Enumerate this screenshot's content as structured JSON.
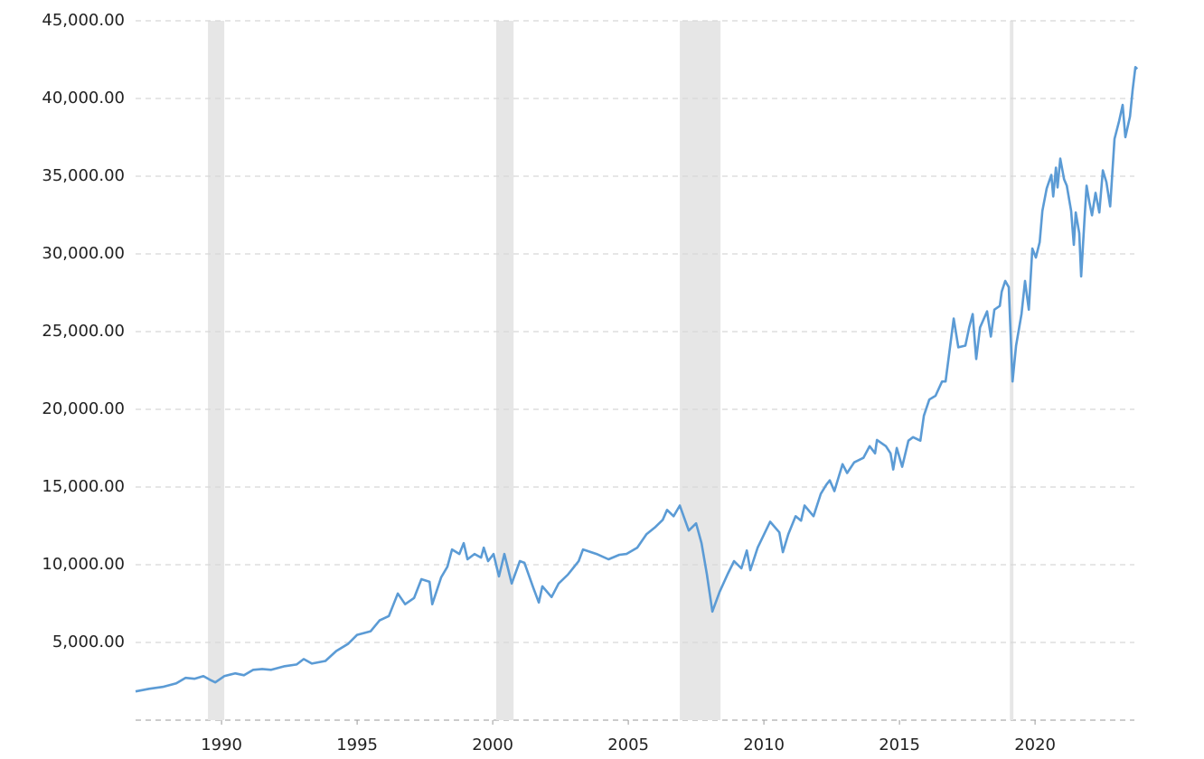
{
  "chart_data": {
    "type": "line",
    "x": [
      1986.83,
      1987.33,
      1987.83,
      1988.33,
      1988.67,
      1989.0,
      1989.33,
      1989.57,
      1989.77,
      1990.1,
      1990.5,
      1990.83,
      1991.17,
      1991.5,
      1991.83,
      1992.33,
      1992.77,
      1993.03,
      1993.33,
      1993.83,
      1994.23,
      1994.67,
      1995.0,
      1995.5,
      1995.83,
      1996.17,
      1996.5,
      1996.77,
      1997.1,
      1997.37,
      1997.67,
      1997.77,
      1998.1,
      1998.33,
      1998.5,
      1998.77,
      1998.93,
      1999.07,
      1999.33,
      1999.57,
      1999.67,
      1999.83,
      2000.03,
      2000.23,
      2000.43,
      2000.7,
      2001.0,
      2001.17,
      2001.5,
      2001.7,
      2001.83,
      2002.17,
      2002.43,
      2002.77,
      2003.17,
      2003.33,
      2003.83,
      2004.27,
      2004.67,
      2004.93,
      2005.33,
      2005.67,
      2006.0,
      2006.27,
      2006.43,
      2006.67,
      2006.9,
      2007.23,
      2007.5,
      2007.7,
      2007.9,
      2008.1,
      2008.37,
      2008.67,
      2008.9,
      2009.17,
      2009.37,
      2009.5,
      2009.77,
      2010.23,
      2010.57,
      2010.7,
      2010.9,
      2011.17,
      2011.37,
      2011.5,
      2011.83,
      2012.1,
      2012.3,
      2012.43,
      2012.6,
      2012.9,
      2013.07,
      2013.33,
      2013.67,
      2013.9,
      2014.1,
      2014.17,
      2014.5,
      2014.67,
      2014.77,
      2014.9,
      2015.1,
      2015.33,
      2015.5,
      2015.77,
      2015.9,
      2016.1,
      2016.33,
      2016.57,
      2016.7,
      2017.0,
      2017.17,
      2017.43,
      2017.57,
      2017.7,
      2017.83,
      2017.97,
      2018.23,
      2018.37,
      2018.5,
      2018.7,
      2018.77,
      2018.9,
      2019.03,
      2019.17,
      2019.3,
      2019.5,
      2019.63,
      2019.77,
      2019.9,
      2020.03,
      2020.17,
      2020.27,
      2020.43,
      2020.6,
      2020.67,
      2020.77,
      2020.83,
      2020.93,
      2021.07,
      2021.17,
      2021.33,
      2021.43,
      2021.5,
      2021.63,
      2021.7,
      2021.83,
      2021.9,
      2022.0,
      2022.1,
      2022.23,
      2022.37,
      2022.5,
      2022.63,
      2022.77,
      2022.93,
      2023.1,
      2023.23,
      2023.33,
      2023.5,
      2023.6,
      2023.7,
      2023.77
    ],
    "series": [
      {
        "color": "#5b9bd5",
        "values": [
          1850,
          2020,
          2140,
          2370,
          2720,
          2660,
          2830,
          2600,
          2430,
          2830,
          3010,
          2890,
          3240,
          3290,
          3240,
          3470,
          3580,
          3930,
          3640,
          3810,
          4450,
          4910,
          5490,
          5720,
          6420,
          6700,
          8150,
          7460,
          7860,
          9070,
          8900,
          7460,
          9190,
          9880,
          10980,
          10690,
          11390,
          10350,
          10690,
          10460,
          11100,
          10230,
          10690,
          9250,
          10690,
          8790,
          10230,
          10120,
          8500,
          7570,
          8610,
          7920,
          8790,
          9360,
          10230,
          10980,
          10690,
          10350,
          10640,
          10690,
          11100,
          11960,
          12430,
          12890,
          13530,
          13120,
          13810,
          12200,
          12660,
          11390,
          9360,
          6990,
          8270,
          9420,
          10230,
          9770,
          10920,
          9650,
          11100,
          12770,
          12080,
          10810,
          11960,
          13120,
          12830,
          13810,
          13120,
          14570,
          15140,
          15430,
          14740,
          16470,
          15900,
          16590,
          16880,
          17630,
          17170,
          18030,
          17630,
          17170,
          16130,
          17510,
          16300,
          17980,
          18210,
          17980,
          19590,
          20630,
          20870,
          21790,
          21790,
          25840,
          23990,
          24100,
          25260,
          26130,
          23240,
          25260,
          26300,
          24680,
          26410,
          26650,
          27570,
          28260,
          27860,
          21790,
          24100,
          26130,
          28260,
          26410,
          30350,
          29770,
          30750,
          32770,
          34220,
          35080,
          33700,
          35550,
          34280,
          36130,
          34800,
          34390,
          32770,
          30580,
          32660,
          31330,
          28550,
          32430,
          34390,
          33350,
          32480,
          33930,
          32660,
          35370,
          34620,
          33060,
          37400,
          38550,
          39590,
          37510,
          38840,
          40580,
          42020,
          41900
        ]
      }
    ],
    "shaded_regions": [
      {
        "start": 1989.5,
        "end": 1990.1
      },
      {
        "start": 2000.13,
        "end": 2000.77
      },
      {
        "start": 2006.9,
        "end": 2008.4
      },
      {
        "start": 2019.07,
        "end": 2019.2
      }
    ],
    "xlim": [
      1986.83,
      2023.93
    ],
    "xticks": [
      1990,
      1995,
      2000,
      2005,
      2010,
      2015,
      2020
    ],
    "ylim": [
      0,
      45000
    ],
    "yticks": [
      {
        "value": 5000,
        "label": "5,000.00"
      },
      {
        "value": 10000,
        "label": "10,000.00"
      },
      {
        "value": 15000,
        "label": "15,000.00"
      },
      {
        "value": 20000,
        "label": "20,000.00"
      },
      {
        "value": 25000,
        "label": "25,000.00"
      },
      {
        "value": 30000,
        "label": "30,000.00"
      },
      {
        "value": 35000,
        "label": "35,000.00"
      },
      {
        "value": 40000,
        "label": "40,000.00"
      },
      {
        "value": 45000,
        "label": "45,000.00"
      }
    ],
    "grid": true
  }
}
